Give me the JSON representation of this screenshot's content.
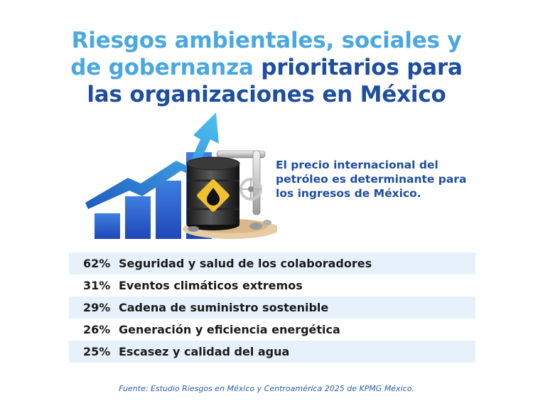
{
  "title": {
    "line1": "Riesgos ambientales, sociales y",
    "line2_highlight": "de gobernanza",
    "line2_rest": " prioritarios para",
    "line3": "las organizaciones en México"
  },
  "callout": {
    "text": "El precio internacional del petróleo es determinante para los ingresos de México."
  },
  "illustration": {
    "icons": [
      "bar-chart-icon",
      "rising-arrow-icon",
      "oil-barrel-icon",
      "oil-drop-icon",
      "pipeline-valve-icon"
    ]
  },
  "stats": [
    {
      "percent": "62%",
      "label": "Seguridad y salud de los colaboradores"
    },
    {
      "percent": "31%",
      "label": "Eventos climáticos extremos"
    },
    {
      "percent": "29%",
      "label": "Cadena de suministro sostenible"
    },
    {
      "percent": "26%",
      "label": "Generación y eficiencia energética"
    },
    {
      "percent": "25%",
      "label": "Escasez y calidad del agua"
    }
  ],
  "source": "Fuente: Estudio Riesgos en México y Centroamérica 2025 de KPMG México.",
  "colors": {
    "title_light": "#4aa8e0",
    "title_dark": "#1e4e9f",
    "row_shade": "#e6f1fb"
  }
}
